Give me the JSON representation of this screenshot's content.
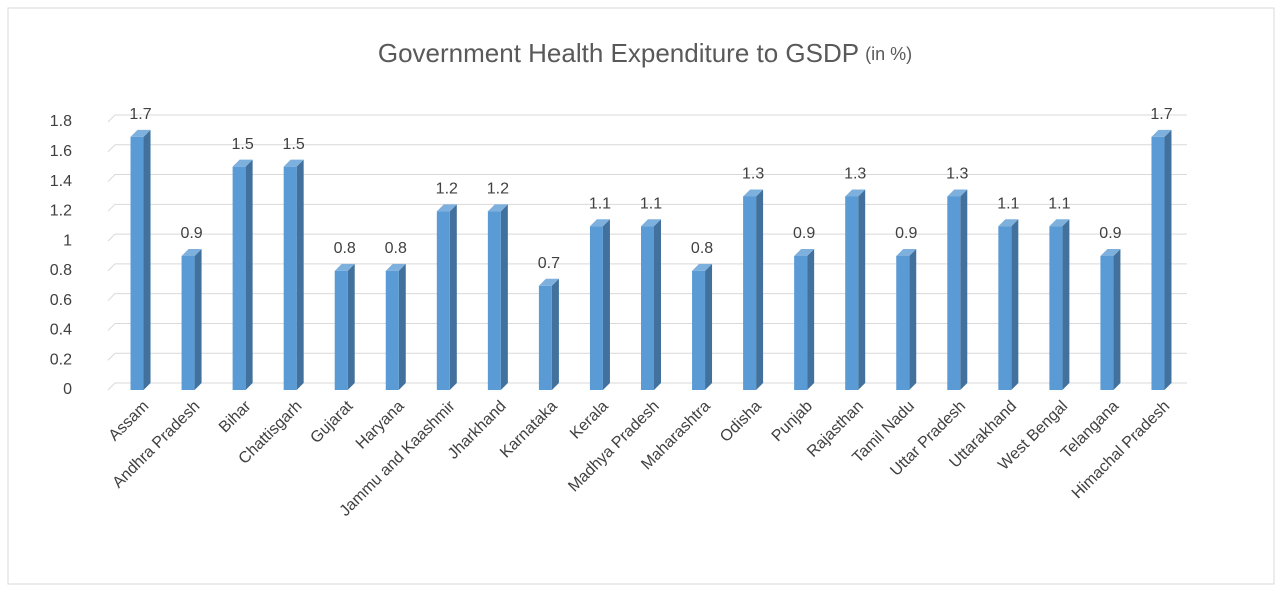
{
  "chart_data": {
    "type": "bar3d",
    "title": "Government Health Expenditure to GSDP",
    "title_unit": "(in %)",
    "categories": [
      "Assam",
      "Andhra Pradesh",
      "Bihar",
      "Chattisgarh",
      "Gujarat",
      "Haryana",
      "Jammu and Kaashmir",
      "Jharkhand",
      "Karnataka",
      "Kerala",
      "Madhya Pradesh",
      "Maharashtra",
      "Odisha",
      "Punjab",
      "Rajasthan",
      "Tamil Nadu",
      "Uttar Pradesh",
      "Uttarakhand",
      "West Bengal",
      "Telangana",
      "Himachal Pradesh"
    ],
    "values": [
      1.7,
      0.9,
      1.5,
      1.5,
      0.8,
      0.8,
      1.2,
      1.2,
      0.7,
      1.1,
      1.1,
      0.8,
      1.3,
      0.9,
      1.3,
      0.9,
      1.3,
      1.1,
      1.1,
      0.9,
      1.7
    ],
    "color": "#5b9bd5",
    "ylim": [
      0,
      1.8
    ],
    "yticks": [
      0,
      0.2,
      0.4,
      0.6,
      0.8,
      1,
      1.2,
      1.4,
      1.6,
      1.8
    ],
    "grid": true
  }
}
